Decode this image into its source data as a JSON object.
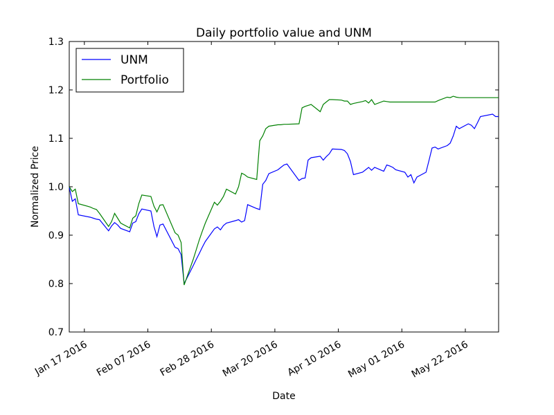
{
  "chart_data": {
    "type": "line",
    "title": "Daily portfolio value and UNM",
    "xlabel": "Date",
    "ylabel": "Normalized Price",
    "xlim": [
      "2016-01-12",
      "2016-06-02"
    ],
    "ylim": [
      0.7,
      1.3
    ],
    "yticks": [
      0.7,
      0.8,
      0.9,
      1.0,
      1.1,
      1.2,
      1.3
    ],
    "ytick_labels": [
      "0.7",
      "0.8",
      "0.9",
      "1.0",
      "1.1",
      "1.2",
      "1.3"
    ],
    "xticks": [
      "2016-01-17",
      "2016-02-07",
      "2016-02-28",
      "2016-03-20",
      "2016-04-10",
      "2016-05-01",
      "2016-05-22"
    ],
    "xtick_labels": [
      "Jan 17 2016",
      "Feb 07 2016",
      "Feb 28 2016",
      "Mar 20 2016",
      "Apr 10 2016",
      "May 01 2016",
      "May 22 2016"
    ],
    "grid": false,
    "legend_position": "top-left",
    "series": [
      {
        "name": "UNM",
        "color": "#0000ff",
        "points": [
          [
            "2016-01-12",
            0.999
          ],
          [
            "2016-01-13",
            0.97
          ],
          [
            "2016-01-14",
            0.975
          ],
          [
            "2016-01-15",
            0.942
          ],
          [
            "2016-01-19",
            0.937
          ],
          [
            "2016-01-20",
            0.935
          ],
          [
            "2016-01-21",
            0.933
          ],
          [
            "2016-01-22",
            0.932
          ],
          [
            "2016-01-25",
            0.909
          ],
          [
            "2016-01-26",
            0.919
          ],
          [
            "2016-01-27",
            0.926
          ],
          [
            "2016-01-28",
            0.921
          ],
          [
            "2016-01-29",
            0.914
          ],
          [
            "2016-02-01",
            0.907
          ],
          [
            "2016-02-02",
            0.925
          ],
          [
            "2016-02-03",
            0.928
          ],
          [
            "2016-02-04",
            0.944
          ],
          [
            "2016-02-05",
            0.954
          ],
          [
            "2016-02-08",
            0.95
          ],
          [
            "2016-02-09",
            0.918
          ],
          [
            "2016-02-10",
            0.897
          ],
          [
            "2016-02-11",
            0.921
          ],
          [
            "2016-02-12",
            0.923
          ],
          [
            "2016-02-16",
            0.875
          ],
          [
            "2016-02-17",
            0.872
          ],
          [
            "2016-02-18",
            0.86
          ],
          [
            "2016-02-19",
            0.8
          ],
          [
            "2016-02-22",
            0.837
          ],
          [
            "2016-02-23",
            0.85
          ],
          [
            "2016-02-24",
            0.862
          ],
          [
            "2016-02-25",
            0.875
          ],
          [
            "2016-02-26",
            0.887
          ],
          [
            "2016-02-29",
            0.913
          ],
          [
            "2016-03-01",
            0.917
          ],
          [
            "2016-03-02",
            0.911
          ],
          [
            "2016-03-03",
            0.92
          ],
          [
            "2016-03-04",
            0.925
          ],
          [
            "2016-03-07",
            0.93
          ],
          [
            "2016-03-08",
            0.932
          ],
          [
            "2016-03-09",
            0.927
          ],
          [
            "2016-03-10",
            0.93
          ],
          [
            "2016-03-11",
            0.963
          ],
          [
            "2016-03-14",
            0.955
          ],
          [
            "2016-03-15",
            0.953
          ],
          [
            "2016-03-16",
            1.005
          ],
          [
            "2016-03-17",
            1.013
          ],
          [
            "2016-03-18",
            1.027
          ],
          [
            "2016-03-21",
            1.035
          ],
          [
            "2016-03-22",
            1.04
          ],
          [
            "2016-03-23",
            1.045
          ],
          [
            "2016-03-24",
            1.047
          ],
          [
            "2016-03-28",
            1.013
          ],
          [
            "2016-03-29",
            1.017
          ],
          [
            "2016-03-30",
            1.018
          ],
          [
            "2016-03-31",
            1.055
          ],
          [
            "2016-04-01",
            1.06
          ],
          [
            "2016-04-04",
            1.063
          ],
          [
            "2016-04-05",
            1.055
          ],
          [
            "2016-04-06",
            1.062
          ],
          [
            "2016-04-07",
            1.068
          ],
          [
            "2016-04-08",
            1.078
          ],
          [
            "2016-04-11",
            1.077
          ],
          [
            "2016-04-12",
            1.075
          ],
          [
            "2016-04-13",
            1.068
          ],
          [
            "2016-04-14",
            1.052
          ],
          [
            "2016-04-15",
            1.025
          ],
          [
            "2016-04-18",
            1.03
          ],
          [
            "2016-04-19",
            1.035
          ],
          [
            "2016-04-20",
            1.04
          ],
          [
            "2016-04-21",
            1.034
          ],
          [
            "2016-04-22",
            1.04
          ],
          [
            "2016-04-25",
            1.032
          ],
          [
            "2016-04-26",
            1.045
          ],
          [
            "2016-04-27",
            1.043
          ],
          [
            "2016-04-28",
            1.04
          ],
          [
            "2016-04-29",
            1.035
          ],
          [
            "2016-05-02",
            1.03
          ],
          [
            "2016-05-03",
            1.02
          ],
          [
            "2016-05-04",
            1.025
          ],
          [
            "2016-05-05",
            1.008
          ],
          [
            "2016-05-06",
            1.02
          ],
          [
            "2016-05-09",
            1.03
          ],
          [
            "2016-05-10",
            1.055
          ],
          [
            "2016-05-11",
            1.08
          ],
          [
            "2016-05-12",
            1.082
          ],
          [
            "2016-05-13",
            1.078
          ],
          [
            "2016-05-16",
            1.085
          ],
          [
            "2016-05-17",
            1.09
          ],
          [
            "2016-05-18",
            1.105
          ],
          [
            "2016-05-19",
            1.125
          ],
          [
            "2016-05-20",
            1.12
          ],
          [
            "2016-05-23",
            1.13
          ],
          [
            "2016-05-24",
            1.127
          ],
          [
            "2016-05-25",
            1.12
          ],
          [
            "2016-05-26",
            1.132
          ],
          [
            "2016-05-27",
            1.145
          ],
          [
            "2016-05-31",
            1.15
          ],
          [
            "2016-06-01",
            1.145
          ],
          [
            "2016-06-02",
            1.145
          ]
        ]
      },
      {
        "name": "Portfolio",
        "color": "#008000",
        "points": [
          [
            "2016-01-12",
            1.0
          ],
          [
            "2016-01-13",
            0.99
          ],
          [
            "2016-01-14",
            0.995
          ],
          [
            "2016-01-15",
            0.965
          ],
          [
            "2016-01-19",
            0.958
          ],
          [
            "2016-01-20",
            0.955
          ],
          [
            "2016-01-21",
            0.953
          ],
          [
            "2016-01-22",
            0.945
          ],
          [
            "2016-01-25",
            0.918
          ],
          [
            "2016-01-26",
            0.928
          ],
          [
            "2016-01-27",
            0.945
          ],
          [
            "2016-01-28",
            0.935
          ],
          [
            "2016-01-29",
            0.925
          ],
          [
            "2016-02-01",
            0.915
          ],
          [
            "2016-02-02",
            0.935
          ],
          [
            "2016-02-03",
            0.94
          ],
          [
            "2016-02-04",
            0.965
          ],
          [
            "2016-02-05",
            0.983
          ],
          [
            "2016-02-08",
            0.98
          ],
          [
            "2016-02-09",
            0.96
          ],
          [
            "2016-02-10",
            0.948
          ],
          [
            "2016-02-11",
            0.962
          ],
          [
            "2016-02-12",
            0.963
          ],
          [
            "2016-02-16",
            0.905
          ],
          [
            "2016-02-17",
            0.9
          ],
          [
            "2016-02-18",
            0.885
          ],
          [
            "2016-02-19",
            0.797
          ],
          [
            "2016-02-22",
            0.85
          ],
          [
            "2016-02-23",
            0.87
          ],
          [
            "2016-02-24",
            0.89
          ],
          [
            "2016-02-25",
            0.908
          ],
          [
            "2016-02-26",
            0.925
          ],
          [
            "2016-02-29",
            0.968
          ],
          [
            "2016-03-01",
            0.962
          ],
          [
            "2016-03-02",
            0.97
          ],
          [
            "2016-03-03",
            0.98
          ],
          [
            "2016-03-04",
            0.995
          ],
          [
            "2016-03-07",
            0.985
          ],
          [
            "2016-03-08",
            1.0
          ],
          [
            "2016-03-09",
            1.028
          ],
          [
            "2016-03-10",
            1.025
          ],
          [
            "2016-03-11",
            1.02
          ],
          [
            "2016-03-14",
            1.015
          ],
          [
            "2016-03-15",
            1.095
          ],
          [
            "2016-03-16",
            1.105
          ],
          [
            "2016-03-17",
            1.12
          ],
          [
            "2016-03-18",
            1.125
          ],
          [
            "2016-03-21",
            1.128
          ],
          [
            "2016-03-22",
            1.128
          ],
          [
            "2016-03-23",
            1.129
          ],
          [
            "2016-03-24",
            1.129
          ],
          [
            "2016-03-28",
            1.13
          ],
          [
            "2016-03-29",
            1.163
          ],
          [
            "2016-03-30",
            1.166
          ],
          [
            "2016-03-31",
            1.168
          ],
          [
            "2016-04-01",
            1.17
          ],
          [
            "2016-04-04",
            1.155
          ],
          [
            "2016-04-05",
            1.17
          ],
          [
            "2016-04-06",
            1.175
          ],
          [
            "2016-04-07",
            1.18
          ],
          [
            "2016-04-08",
            1.18
          ],
          [
            "2016-04-11",
            1.179
          ],
          [
            "2016-04-12",
            1.177
          ],
          [
            "2016-04-13",
            1.177
          ],
          [
            "2016-04-14",
            1.17
          ],
          [
            "2016-04-15",
            1.172
          ],
          [
            "2016-04-18",
            1.176
          ],
          [
            "2016-04-19",
            1.178
          ],
          [
            "2016-04-20",
            1.173
          ],
          [
            "2016-04-21",
            1.18
          ],
          [
            "2016-04-22",
            1.17
          ],
          [
            "2016-04-25",
            1.177
          ],
          [
            "2016-04-26",
            1.176
          ],
          [
            "2016-04-27",
            1.175
          ],
          [
            "2016-04-28",
            1.175
          ],
          [
            "2016-04-29",
            1.175
          ],
          [
            "2016-05-02",
            1.175
          ],
          [
            "2016-05-03",
            1.175
          ],
          [
            "2016-05-04",
            1.175
          ],
          [
            "2016-05-05",
            1.175
          ],
          [
            "2016-05-06",
            1.175
          ],
          [
            "2016-05-09",
            1.175
          ],
          [
            "2016-05-10",
            1.175
          ],
          [
            "2016-05-11",
            1.175
          ],
          [
            "2016-05-12",
            1.175
          ],
          [
            "2016-05-13",
            1.178
          ],
          [
            "2016-05-16",
            1.185
          ],
          [
            "2016-05-17",
            1.184
          ],
          [
            "2016-05-18",
            1.187
          ],
          [
            "2016-05-19",
            1.185
          ],
          [
            "2016-05-20",
            1.184
          ],
          [
            "2016-05-23",
            1.184
          ],
          [
            "2016-05-24",
            1.184
          ],
          [
            "2016-05-25",
            1.184
          ],
          [
            "2016-05-26",
            1.184
          ],
          [
            "2016-05-27",
            1.184
          ],
          [
            "2016-05-31",
            1.184
          ],
          [
            "2016-06-01",
            1.184
          ],
          [
            "2016-06-02",
            1.184
          ]
        ]
      }
    ]
  }
}
